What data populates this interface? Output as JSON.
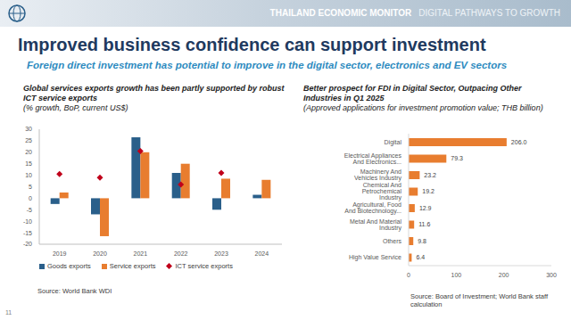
{
  "header": {
    "title": "THAILAND ECONOMIC MONITOR",
    "subtitle": "DIGITAL PATHWAYS TO GROWTH"
  },
  "title": "Improved business confidence can support investment",
  "subtitle": "Foreign direct investment has potential to improve in the digital sector, electronics and EV sectors",
  "page": "11",
  "chart_data": [
    {
      "type": "bar",
      "title": "Global services exports growth has been partly supported by robust ICT service exports",
      "subtitle": "(% growth, BoP, current US$)",
      "source": "Source: World Bank WDI",
      "categories": [
        "2019",
        "2020",
        "2021",
        "2022",
        "2023",
        "2024"
      ],
      "series": [
        {
          "name": "Goods exports",
          "color": "#2a5f8a",
          "values": [
            -2.5,
            -7,
            26.5,
            11,
            -5,
            1.5
          ]
        },
        {
          "name": "Service exports",
          "color": "#e87d2f",
          "values": [
            2.5,
            -16.5,
            20,
            15,
            8.5,
            8
          ]
        },
        {
          "name": "ICT service exports",
          "color": "#c0001a",
          "type": "scatter",
          "marker": "diamond",
          "values": [
            10.5,
            9,
            20.5,
            6,
            11,
            null
          ]
        }
      ],
      "ylim": [
        -20,
        30
      ],
      "yticks": [
        -20,
        -15,
        -10,
        -5,
        0,
        5,
        10,
        15,
        20,
        25,
        30
      ],
      "grid": false,
      "legend": "bottom"
    },
    {
      "type": "bar",
      "orientation": "horizontal",
      "title": "Better prospect for FDI in Digital Sector, Outpacing Other Industries in Q1 2025",
      "subtitle": "(Approved applications for investment promotion value; THB billion)",
      "source": "Source: Board of Investment; World Bank staff calculation",
      "categories": [
        "Digital",
        "Electrical Appliances And Electronics...",
        "Machinery And Vehicles Industry",
        "Chemical And Petrochemical Industry",
        "Agricultural, Food And Biotechnology...",
        "Metal And Material Industry",
        "Others",
        "High Value Service"
      ],
      "values": [
        206.0,
        79.3,
        23.2,
        19.2,
        12.9,
        11.6,
        9.8,
        6.4
      ],
      "value_labels": [
        "206.0",
        "79.3",
        "23.2",
        "19.2",
        "12.9",
        "11.6",
        "9.8",
        "6.4"
      ],
      "color": "#e87d2f",
      "xlim": [
        0,
        300
      ],
      "xticks": [
        0,
        100,
        200,
        300
      ],
      "grid": false,
      "data_labels": true
    }
  ]
}
